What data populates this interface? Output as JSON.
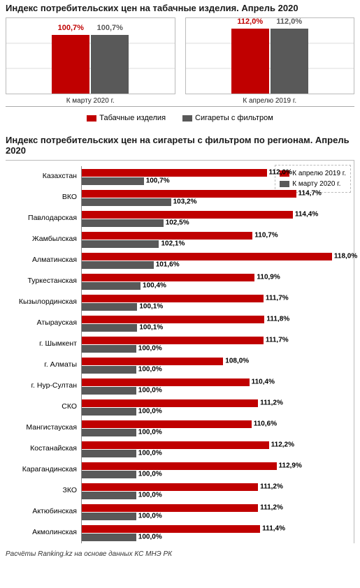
{
  "colors": {
    "red": "#c00000",
    "gray": "#595959",
    "grid": "#dcdcdc",
    "border": "#bbbbbb"
  },
  "chart1": {
    "title": "Индекс потребительских цен на табачные изделия. Апрель 2020",
    "ymax": 130,
    "groups": [
      {
        "xlabel": "К марту 2020 г.",
        "bars": [
          {
            "series": "tobacco",
            "value": 100.7,
            "label": "100,7%"
          },
          {
            "series": "cig",
            "value": 100.7,
            "label": "100,7%"
          }
        ]
      },
      {
        "xlabel": "К апрелю 2019 г.",
        "bars": [
          {
            "series": "tobacco",
            "value": 112.0,
            "label": "112,0%"
          },
          {
            "series": "cig",
            "value": 112.0,
            "label": "112,0%"
          }
        ]
      }
    ],
    "legend": [
      {
        "series": "tobacco",
        "label": "Табачные изделия"
      },
      {
        "series": "cig",
        "label": "Сигареты с фильтром"
      }
    ]
  },
  "chart2": {
    "title": "Индекс потребительских цен на сигареты с фильтром по регионам. Апрель 2020",
    "xbase": 95,
    "xmax": 120,
    "legend": [
      {
        "series": "apr19",
        "label": "К апрелю 2019 г."
      },
      {
        "series": "mar20",
        "label": "К марту 2020 г."
      }
    ],
    "rows": [
      {
        "label": "Казахстан",
        "apr19": 112.0,
        "apr19_lbl": "112,0%",
        "mar20": 100.7,
        "mar20_lbl": "100,7%"
      },
      {
        "label": "ВКО",
        "apr19": 114.7,
        "apr19_lbl": "114,7%",
        "mar20": 103.2,
        "mar20_lbl": "103,2%"
      },
      {
        "label": "Павлодарская",
        "apr19": 114.4,
        "apr19_lbl": "114,4%",
        "mar20": 102.5,
        "mar20_lbl": "102,5%"
      },
      {
        "label": "Жамбылская",
        "apr19": 110.7,
        "apr19_lbl": "110,7%",
        "mar20": 102.1,
        "mar20_lbl": "102,1%"
      },
      {
        "label": "Алматинская",
        "apr19": 118.0,
        "apr19_lbl": "118,0%",
        "mar20": 101.6,
        "mar20_lbl": "101,6%"
      },
      {
        "label": "Туркестанская",
        "apr19": 110.9,
        "apr19_lbl": "110,9%",
        "mar20": 100.4,
        "mar20_lbl": "100,4%"
      },
      {
        "label": "Кызылординская",
        "apr19": 111.7,
        "apr19_lbl": "111,7%",
        "mar20": 100.1,
        "mar20_lbl": "100,1%"
      },
      {
        "label": "Атырауская",
        "apr19": 111.8,
        "apr19_lbl": "111,8%",
        "mar20": 100.1,
        "mar20_lbl": "100,1%"
      },
      {
        "label": "г. Шымкент",
        "apr19": 111.7,
        "apr19_lbl": "111,7%",
        "mar20": 100.0,
        "mar20_lbl": "100,0%"
      },
      {
        "label": "г. Алматы",
        "apr19": 108.0,
        "apr19_lbl": "108,0%",
        "mar20": 100.0,
        "mar20_lbl": "100,0%"
      },
      {
        "label": "г. Нур-Султан",
        "apr19": 110.4,
        "apr19_lbl": "110,4%",
        "mar20": 100.0,
        "mar20_lbl": "100,0%"
      },
      {
        "label": "СКО",
        "apr19": 111.2,
        "apr19_lbl": "111,2%",
        "mar20": 100.0,
        "mar20_lbl": "100,0%"
      },
      {
        "label": "Мангистауская",
        "apr19": 110.6,
        "apr19_lbl": "110,6%",
        "mar20": 100.0,
        "mar20_lbl": "100,0%"
      },
      {
        "label": "Костанайская",
        "apr19": 112.2,
        "apr19_lbl": "112,2%",
        "mar20": 100.0,
        "mar20_lbl": "100,0%"
      },
      {
        "label": "Карагандинская",
        "apr19": 112.9,
        "apr19_lbl": "112,9%",
        "mar20": 100.0,
        "mar20_lbl": "100,0%"
      },
      {
        "label": "ЗКО",
        "apr19": 111.2,
        "apr19_lbl": "111,2%",
        "mar20": 100.0,
        "mar20_lbl": "100,0%"
      },
      {
        "label": "Актюбинская",
        "apr19": 111.2,
        "apr19_lbl": "111,2%",
        "mar20": 100.0,
        "mar20_lbl": "100,0%"
      },
      {
        "label": "Акмолинская",
        "apr19": 111.4,
        "apr19_lbl": "111,4%",
        "mar20": 100.0,
        "mar20_lbl": "100,0%"
      }
    ]
  },
  "footer": "Расчёты Ranking.kz на основе данных КС МНЭ РК"
}
